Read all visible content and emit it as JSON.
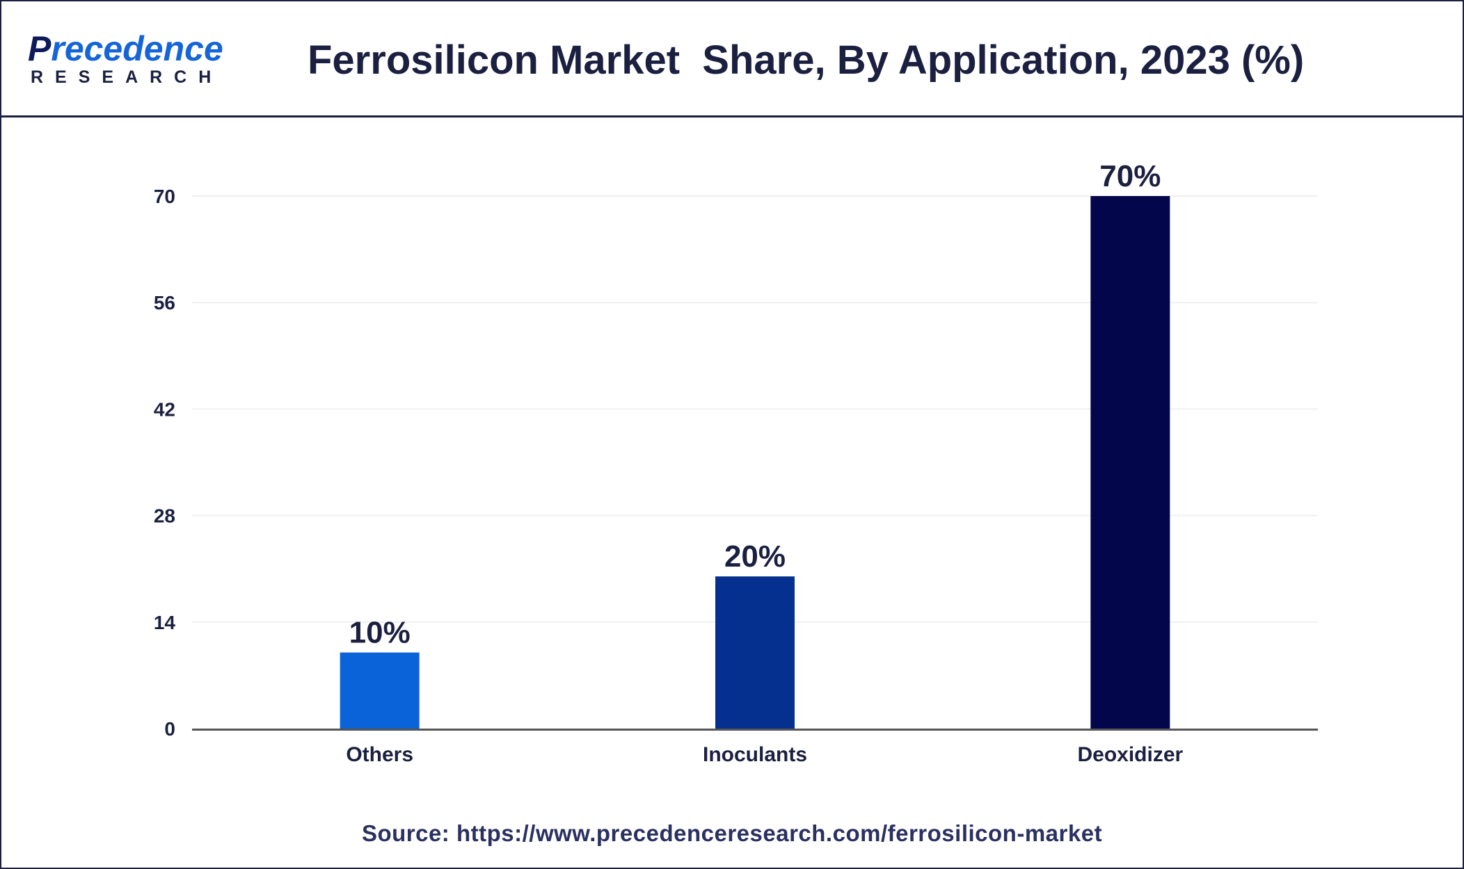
{
  "logo": {
    "brand_lead": "P",
    "brand_rest": "recedence",
    "sub": "RESEARCH"
  },
  "colors": {
    "frame": "#1b2040",
    "others": "#0b63d9",
    "inoculants": "#05308f",
    "deoxidizer": "#03064a",
    "axis": "#555555",
    "grid": "#f0f0f0",
    "text": "#1b2040"
  },
  "chart_data": {
    "type": "bar",
    "title": "Ferrosilicon Market  Share, By Application, 2023 (%)",
    "categories": [
      "Others",
      "Inoculants",
      "Deoxidizer"
    ],
    "values": [
      10,
      20,
      70
    ],
    "data_labels": [
      "10%",
      "20%",
      "70%"
    ],
    "yticks": [
      0,
      14,
      28,
      42,
      56,
      70
    ],
    "ylim": [
      0,
      70
    ],
    "xlabel": "",
    "ylabel": "",
    "grid": true,
    "legend": "none"
  },
  "source": "Source: https://www.precedenceresearch.com/ferrosilicon-market"
}
